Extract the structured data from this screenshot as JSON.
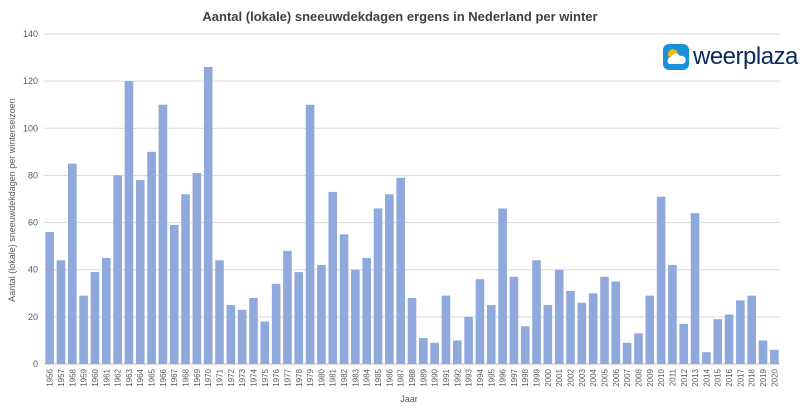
{
  "logo": {
    "text": "weerplaza",
    "icon": "sun-cloud-icon"
  },
  "colors": {
    "bar": "#8FA9DC",
    "grid": "#D9D9D9",
    "text": "#595959",
    "title": "#404040",
    "logo_blue": "#1B8FD8",
    "logo_sun": "#F5B800",
    "logo_text": "#0A2A5C"
  },
  "chart_data": {
    "type": "bar",
    "title": "Aantal (lokale) sneeuwdekdagen ergens in Nederland per winter",
    "xlabel": "Jaar",
    "ylabel": "Aantal (lokale) sneeuwdekdagen  per winterseizoen",
    "ylim": [
      0,
      140
    ],
    "yticks": [
      0,
      20,
      40,
      60,
      80,
      100,
      120,
      140
    ],
    "grid": true,
    "categories": [
      "1956",
      "1957",
      "1958",
      "1959",
      "1960",
      "1961",
      "1962",
      "1963",
      "1964",
      "1965",
      "1966",
      "1967",
      "1968",
      "1969",
      "1970",
      "1971",
      "1972",
      "1973",
      "1974",
      "1975",
      "1976",
      "1977",
      "1978",
      "1979",
      "1980",
      "1981",
      "1982",
      "1983",
      "1984",
      "1985",
      "1986",
      "1987",
      "1988",
      "1989",
      "1990",
      "1991",
      "1992",
      "1993",
      "1994",
      "1995",
      "1996",
      "1997",
      "1998",
      "1999",
      "2000",
      "2001",
      "2002",
      "2003",
      "2004",
      "2005",
      "2006",
      "2007",
      "2008",
      "2009",
      "2010",
      "2011",
      "2012",
      "2013",
      "2014",
      "2015",
      "2016",
      "2017",
      "2018",
      "2019",
      "2020"
    ],
    "values": [
      56,
      44,
      85,
      29,
      39,
      45,
      80,
      120,
      78,
      90,
      110,
      59,
      72,
      81,
      126,
      44,
      25,
      23,
      28,
      18,
      34,
      48,
      39,
      110,
      42,
      73,
      55,
      40,
      45,
      66,
      72,
      79,
      28,
      11,
      9,
      29,
      10,
      20,
      36,
      25,
      66,
      37,
      16,
      44,
      25,
      40,
      31,
      26,
      30,
      37,
      35,
      9,
      13,
      29,
      71,
      42,
      17,
      64,
      5,
      19,
      21,
      27,
      29,
      10,
      6
    ]
  }
}
